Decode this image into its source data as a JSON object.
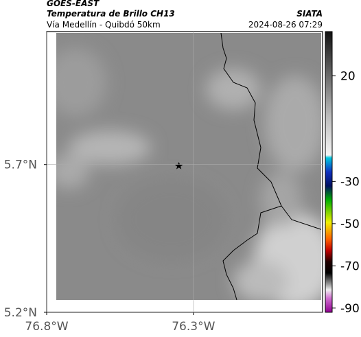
{
  "header": {
    "source": "GOES-EAST",
    "product": "Temperatura de Brillo CH13",
    "region": "Vía Medellín - Quibdó 50km",
    "agency": "SIATA",
    "timestamp": "2024-08-26 07:29"
  },
  "map": {
    "xlim": [
      -76.8,
      -75.86
    ],
    "ylim": [
      5.2,
      6.15
    ],
    "xticks": [
      {
        "value": -76.8,
        "label": "76.8°W"
      },
      {
        "value": -76.3,
        "label": "76.3°W"
      }
    ],
    "yticks": [
      {
        "value": 5.7,
        "label": "5.7°N"
      },
      {
        "value": 5.2,
        "label": "5.2°N"
      }
    ]
  },
  "colorbar": {
    "range": [
      -92,
      41
    ],
    "ticks": [
      20,
      -30,
      -50,
      -70,
      -90
    ]
  }
}
